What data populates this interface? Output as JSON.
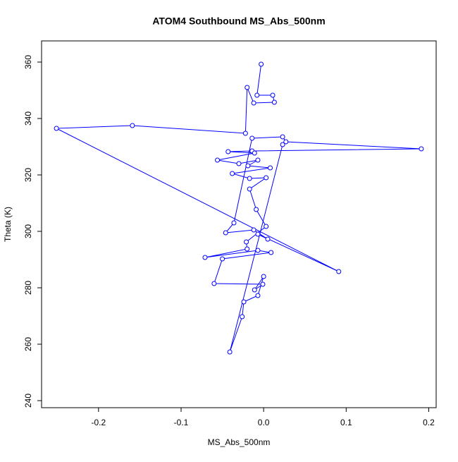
{
  "chart_data": {
    "type": "line",
    "title": "ATOM4 Southbound MS_Abs_500nm",
    "x_label": "MS_Abs_500nm",
    "y_label": "Theta (K)",
    "x": [
      -0.003,
      -0.008,
      0.011,
      0.013,
      -0.012,
      -0.02,
      -0.022,
      -0.159,
      -0.251,
      0.091,
      -0.007,
      0.005,
      -0.012,
      -0.046,
      -0.036,
      -0.014,
      0.023,
      0.027,
      0.191,
      -0.014,
      -0.043,
      -0.011,
      -0.056,
      -0.03,
      -0.007,
      -0.019,
      0.008,
      -0.038,
      -0.017,
      0.003,
      -0.017,
      -0.009,
      0.003,
      -0.021,
      -0.02,
      -0.071,
      -0.007,
      0.009,
      -0.05,
      -0.06,
      -0.001,
      -0.011,
      0.0,
      -0.007,
      -0.024,
      -0.026,
      -0.041,
      0.023
    ],
    "series": [
      {
        "name": "Theta",
        "color": "#0000ff",
        "values": [
          359.25,
          348.25,
          348.25,
          345.75,
          345.5,
          351,
          334.75,
          337.5,
          336.5,
          285.75,
          299,
          297.25,
          300.5,
          299.5,
          303,
          333,
          333.5,
          331.75,
          329.25,
          328.5,
          328.25,
          327.75,
          325.25,
          324,
          325.25,
          323.25,
          322.5,
          320.5,
          318.75,
          319,
          315,
          307.75,
          301.75,
          296.25,
          293.75,
          290.75,
          293.25,
          292.5,
          290.25,
          281.5,
          281.25,
          279.25,
          284,
          277.25,
          275,
          269.75,
          257.25,
          330.75
        ]
      }
    ],
    "xlim": [
      -0.269,
      0.209
    ],
    "ylim": [
      237.5,
      367.5
    ],
    "xticks": [
      -0.2,
      -0.1,
      {
        "value": 0,
        "label": "0.0"
      },
      0.1,
      0.2
    ],
    "yticks": [
      240,
      260,
      280,
      300,
      320,
      340,
      360
    ]
  }
}
